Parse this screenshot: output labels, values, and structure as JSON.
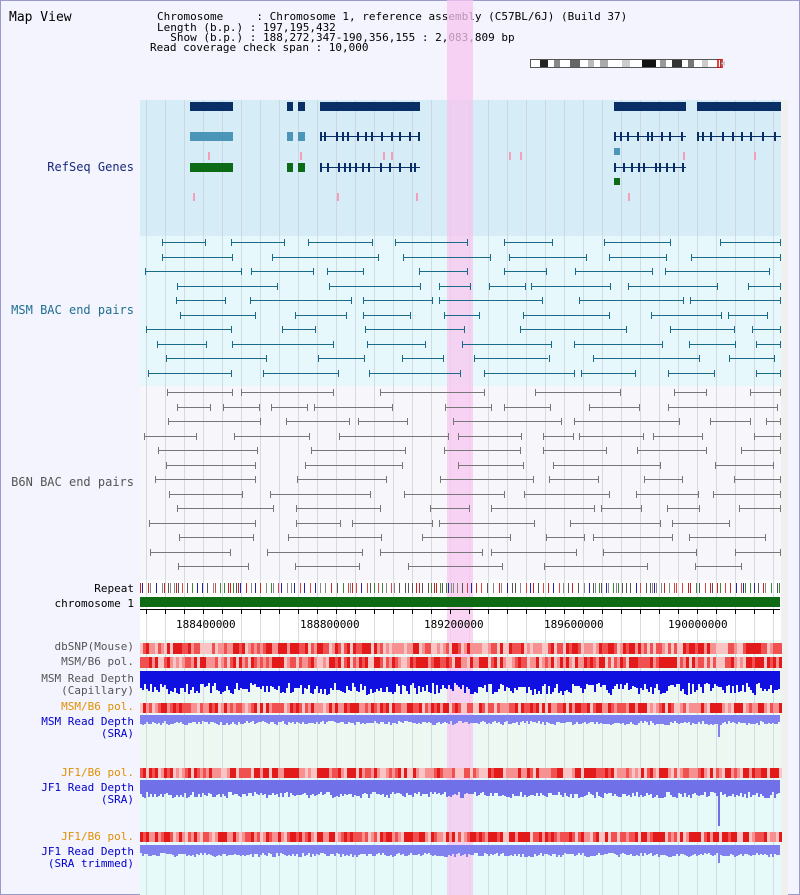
{
  "header": {
    "title": "Map View",
    "chromosome_line": "Chromosome     : Chromosome 1, reference assembly (C57BL/6J) (Build 37)",
    "length_line": "Length (b.p.) : 197,195,432",
    "show_line": "  Show (b.p.) : 188,272,347-190,356,155 : 2,083,809 bp",
    "coverage_line": "Read coverage check span : 10,000"
  },
  "tracks": {
    "refseq": "RefSeq Genes",
    "msm_bac": "MSM BAC end pairs",
    "b6n_bac": "B6N BAC end pairs",
    "repeat": "Repeat",
    "chromosome": "chromosome 1",
    "dbsnp": "dbSNP(Mouse)",
    "msm_b6_pol_1": "MSM/B6 pol.",
    "msm_read_depth_cap_1": "MSM Read Depth",
    "msm_read_depth_cap_2": "(Capillary)",
    "msm_b6_pol_2": "MSM/B6 pol.",
    "msm_read_depth_sra_1": "MSM Read Depth",
    "msm_read_depth_sra_2": "(SRA)",
    "jf1_b6_pol_1": "JF1/B6 pol.",
    "jf1_read_depth_sra_1": "JF1 Read Depth",
    "jf1_read_depth_sra_2": "(SRA)",
    "jf1_b6_pol_2": "JF1/B6 pol.",
    "jf1_read_depth_trim_1": "JF1 Read Depth",
    "jf1_read_depth_trim_2": "(SRA trimmed)"
  },
  "axis": {
    "ticks": [
      "188400000",
      "188800000",
      "189200000",
      "189600000",
      "190000000"
    ]
  },
  "colors": {
    "refseq_bg": "#d6ecf7",
    "msm_bg": "#e6f8fb",
    "b6n_bg": "#f6f6fb",
    "highlight": "#f7c6ef",
    "gene_dark": "#0a2f66",
    "gene_teal": "#4b95b8",
    "gene_green": "#0b6b16",
    "msm_feature": "#1a6a8a",
    "b6n_feature": "#777777",
    "chromosome_bar": "#0f6a14",
    "label_navy": "#1a2a7a",
    "label_teal": "#1f6f8f",
    "label_gray": "#555555",
    "label_orange": "#e09000",
    "label_blue": "#0000cc"
  }
}
